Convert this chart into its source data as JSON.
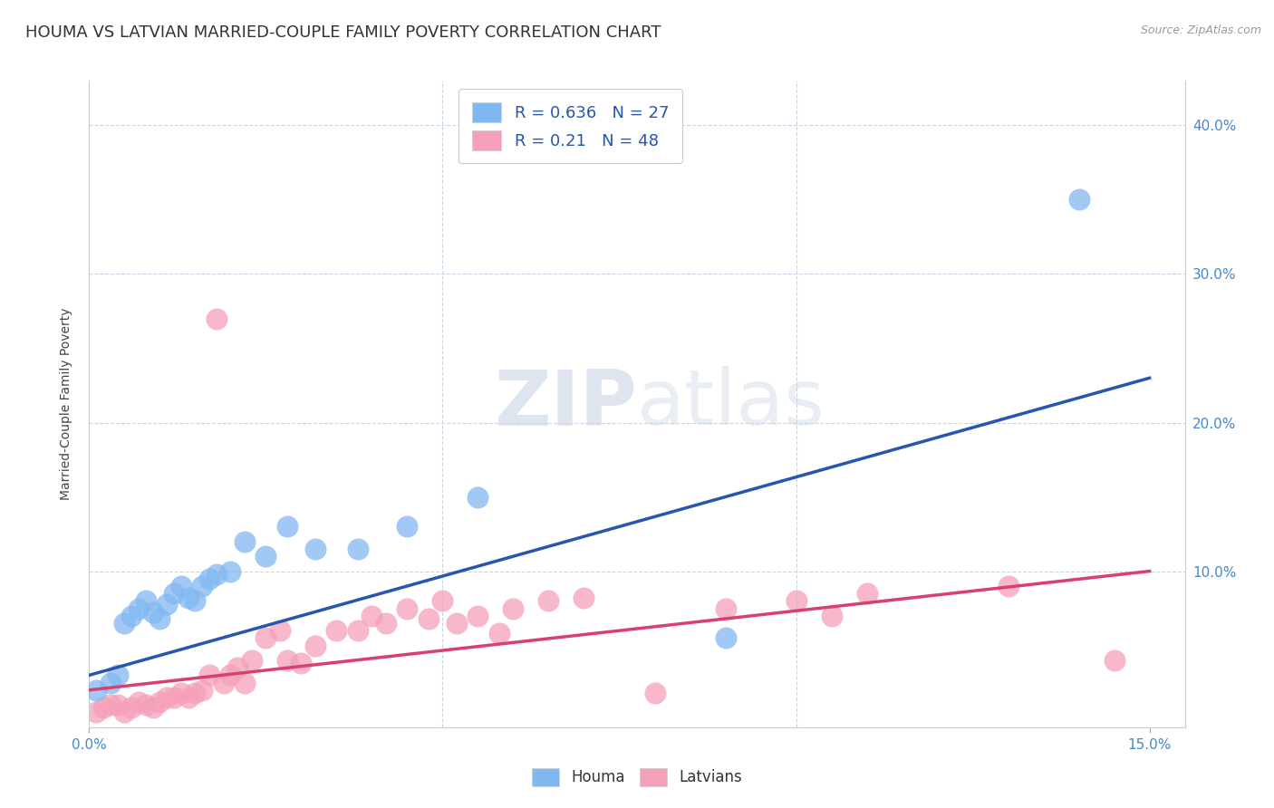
{
  "title": "HOUMA VS LATVIAN MARRIED-COUPLE FAMILY POVERTY CORRELATION CHART",
  "source": "Source: ZipAtlas.com",
  "ylabel": "Married-Couple Family Poverty",
  "xlim": [
    0.0,
    0.155
  ],
  "ylim": [
    -0.005,
    0.43
  ],
  "yticks": [
    0.1,
    0.2,
    0.3,
    0.4
  ],
  "ytick_labels": [
    "10.0%",
    "20.0%",
    "30.0%",
    "40.0%"
  ],
  "xtick_left": "0.0%",
  "xtick_right": "15.0%",
  "houma_R": 0.636,
  "houma_N": 27,
  "latvian_R": 0.21,
  "latvian_N": 48,
  "houma_color": "#82b8f0",
  "latvian_color": "#f5a0b8",
  "houma_line_color": "#2855b0",
  "latvian_line_color": "#d84070",
  "background_color": "#ffffff",
  "grid_color": "#c8d4e8",
  "watermark_zip": "ZIP",
  "watermark_atlas": "atlas",
  "title_fontsize": 13,
  "houma_x": [
    0.001,
    0.003,
    0.004,
    0.005,
    0.006,
    0.007,
    0.008,
    0.009,
    0.01,
    0.011,
    0.012,
    0.013,
    0.014,
    0.015,
    0.016,
    0.017,
    0.018,
    0.02,
    0.022,
    0.025,
    0.028,
    0.032,
    0.038,
    0.045,
    0.055,
    0.09,
    0.14
  ],
  "houma_y": [
    0.02,
    0.025,
    0.03,
    0.065,
    0.07,
    0.075,
    0.08,
    0.072,
    0.068,
    0.078,
    0.085,
    0.09,
    0.082,
    0.08,
    0.09,
    0.095,
    0.098,
    0.1,
    0.12,
    0.11,
    0.13,
    0.115,
    0.115,
    0.13,
    0.15,
    0.055,
    0.35
  ],
  "latvian_x": [
    0.001,
    0.002,
    0.003,
    0.004,
    0.005,
    0.006,
    0.007,
    0.008,
    0.009,
    0.01,
    0.011,
    0.012,
    0.013,
    0.014,
    0.015,
    0.016,
    0.017,
    0.018,
    0.019,
    0.02,
    0.021,
    0.022,
    0.023,
    0.025,
    0.027,
    0.028,
    0.03,
    0.032,
    0.035,
    0.038,
    0.04,
    0.042,
    0.045,
    0.048,
    0.05,
    0.052,
    0.055,
    0.058,
    0.06,
    0.065,
    0.07,
    0.08,
    0.09,
    0.1,
    0.105,
    0.11,
    0.13,
    0.145
  ],
  "latvian_y": [
    0.005,
    0.008,
    0.01,
    0.01,
    0.005,
    0.008,
    0.012,
    0.01,
    0.008,
    0.012,
    0.015,
    0.015,
    0.018,
    0.015,
    0.018,
    0.02,
    0.03,
    0.27,
    0.025,
    0.03,
    0.035,
    0.025,
    0.04,
    0.055,
    0.06,
    0.04,
    0.038,
    0.05,
    0.06,
    0.06,
    0.07,
    0.065,
    0.075,
    0.068,
    0.08,
    0.065,
    0.07,
    0.058,
    0.075,
    0.08,
    0.082,
    0.018,
    0.075,
    0.08,
    0.07,
    0.085,
    0.09,
    0.04
  ],
  "houma_line_x0": 0.0,
  "houma_line_y0": 0.03,
  "houma_line_x1": 0.15,
  "houma_line_y1": 0.23,
  "latvian_line_x0": 0.0,
  "latvian_line_y0": 0.02,
  "latvian_line_x1": 0.15,
  "latvian_line_y1": 0.1
}
